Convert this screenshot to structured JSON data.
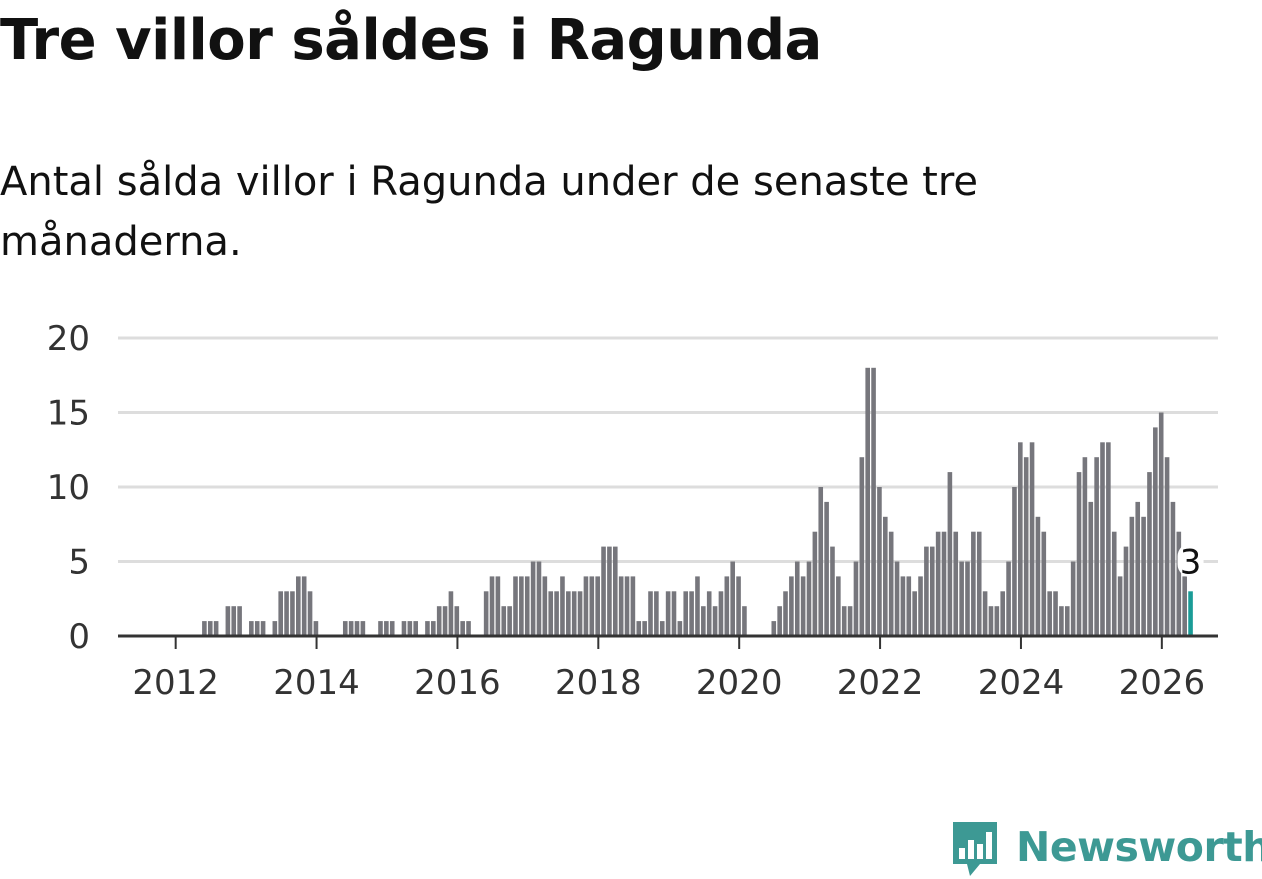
{
  "header": {
    "title": "Tre villor såldes i Ragunda",
    "subtitle": "Antal sålda villor i Ragunda under de senaste tre månaderna."
  },
  "colors": {
    "bar": "#76767c",
    "highlight": "#1a9c97",
    "grid": "#dddddd",
    "axis": "#333333",
    "brand": "#3d9994"
  },
  "brand": {
    "name": "Newsworthy",
    "icon": "bar-chart-speech-bubble-icon"
  },
  "chart_data": {
    "type": "bar",
    "start_year": 2011,
    "start_month": 1,
    "ylim": [
      0,
      20
    ],
    "yticks": [
      0,
      5,
      10,
      15,
      20
    ],
    "xticks": [
      "2012",
      "2014",
      "2016",
      "2018",
      "2020",
      "2022",
      "2024",
      "2026"
    ],
    "grid": true,
    "xlabel": "",
    "ylabel": "",
    "values": [
      0,
      0,
      0,
      0,
      0,
      0,
      0,
      0,
      0,
      0,
      0,
      0,
      0,
      0,
      0,
      0,
      0,
      1,
      1,
      1,
      0,
      2,
      2,
      2,
      0,
      1,
      1,
      1,
      0,
      1,
      3,
      3,
      3,
      4,
      4,
      3,
      1,
      0,
      0,
      0,
      0,
      1,
      1,
      1,
      1,
      0,
      0,
      1,
      1,
      1,
      0,
      1,
      1,
      1,
      0,
      1,
      1,
      2,
      2,
      3,
      2,
      1,
      1,
      0,
      0,
      3,
      4,
      4,
      2,
      2,
      4,
      4,
      4,
      5,
      5,
      4,
      3,
      3,
      4,
      3,
      3,
      3,
      4,
      4,
      4,
      6,
      6,
      6,
      4,
      4,
      4,
      1,
      1,
      3,
      3,
      1,
      3,
      3,
      1,
      3,
      3,
      4,
      2,
      3,
      2,
      3,
      4,
      5,
      4,
      2,
      0,
      0,
      0,
      0,
      1,
      2,
      3,
      4,
      5,
      4,
      5,
      7,
      10,
      9,
      6,
      4,
      2,
      2,
      5,
      12,
      18,
      18,
      10,
      8,
      7,
      5,
      4,
      4,
      3,
      4,
      6,
      6,
      7,
      7,
      11,
      7,
      5,
      5,
      7,
      7,
      3,
      2,
      2,
      3,
      5,
      10,
      13,
      12,
      13,
      8,
      7,
      3,
      3,
      2,
      2,
      5,
      11,
      12,
      9,
      12,
      13,
      13,
      7,
      4,
      6,
      8,
      9,
      8,
      11,
      14,
      15,
      12,
      9,
      7,
      4,
      3
    ],
    "highlight": {
      "label": "3",
      "value": 3
    }
  }
}
